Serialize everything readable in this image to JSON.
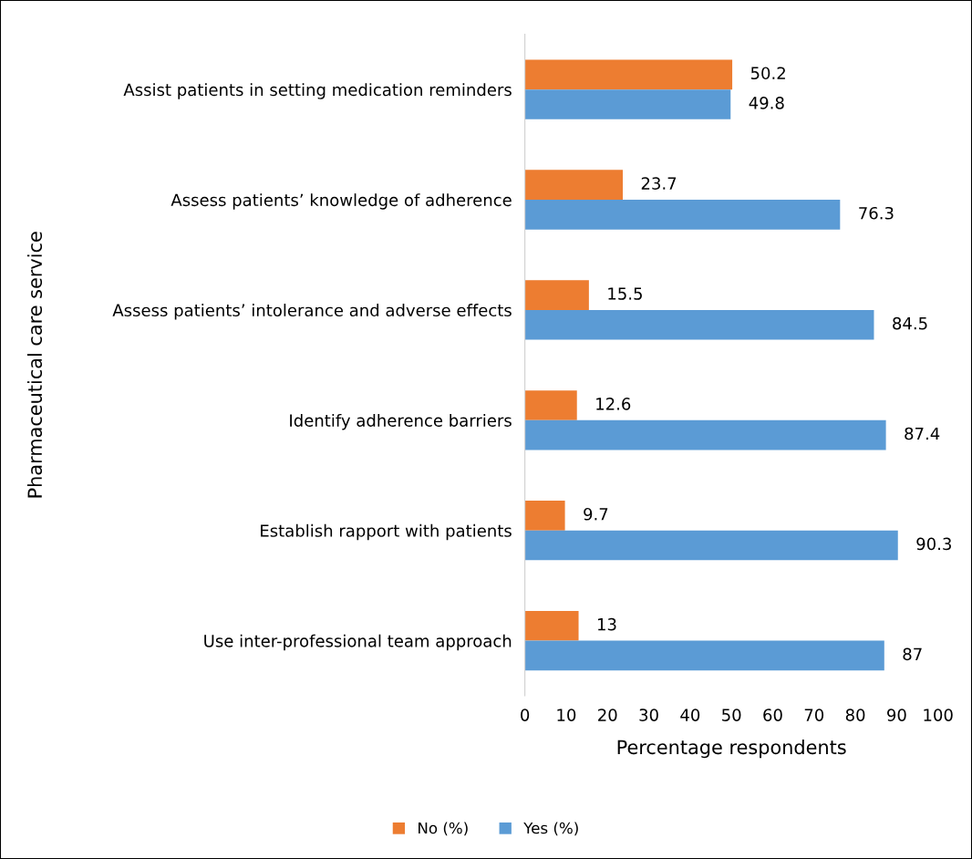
{
  "chart_data": {
    "type": "bar",
    "orientation": "horizontal",
    "xlabel": "Percentage respondents",
    "ylabel": "Pharmaceutical care service",
    "categories": [
      "Assist patients in setting medication reminders",
      "Assess patients’ knowledge of adherence",
      "Assess patients’ intolerance and adverse effects",
      "Identify adherence barriers",
      "Establish rapport with patients",
      "Use inter-professional team approach"
    ],
    "series": [
      {
        "name": "No (%)",
        "color": "#ed7d31",
        "values": [
          50.2,
          23.7,
          15.5,
          12.6,
          9.7,
          13
        ]
      },
      {
        "name": "Yes (%)",
        "color": "#5b9bd5",
        "values": [
          49.8,
          76.3,
          84.5,
          87.4,
          90.3,
          87
        ]
      }
    ],
    "xlim": [
      0,
      100
    ],
    "xticks": [
      0,
      10,
      20,
      30,
      40,
      50,
      60,
      70,
      80,
      90,
      100
    ],
    "data_labels": true,
    "grid": false,
    "legend": "bottom"
  }
}
